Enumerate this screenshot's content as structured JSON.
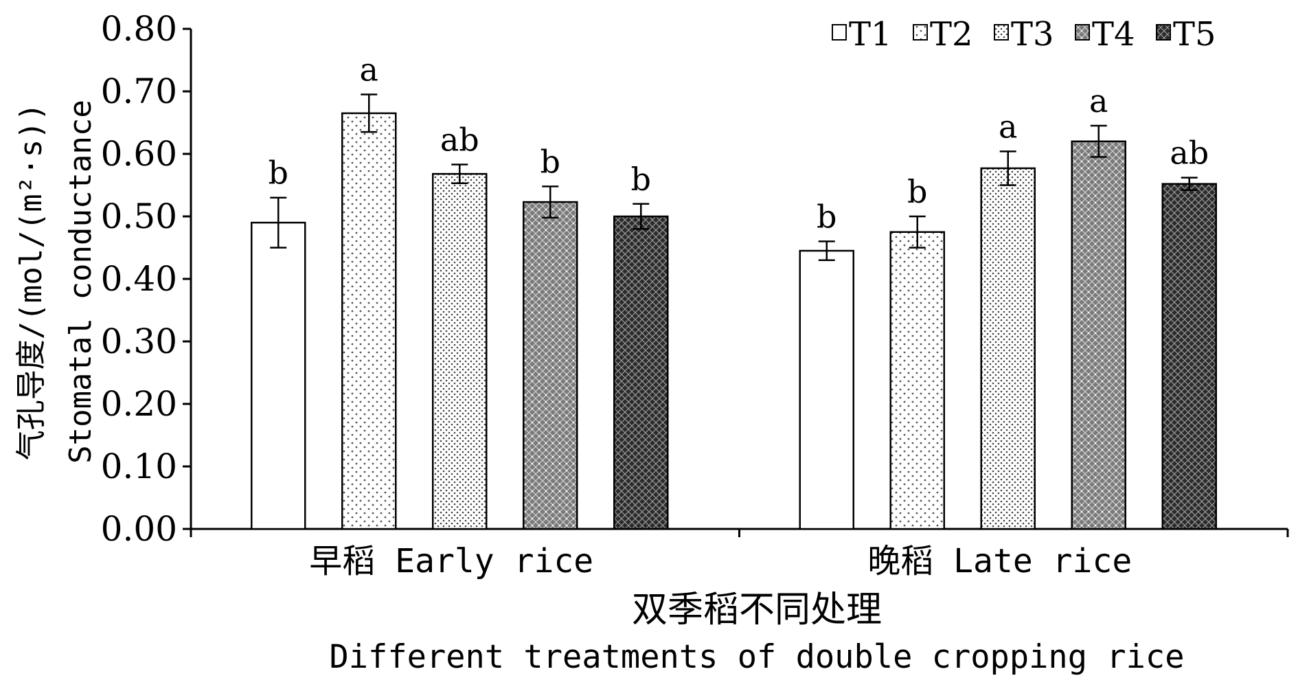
{
  "chart_data": {
    "type": "bar",
    "ylabel_cn": "气孔导度/(mol/(m²·s))",
    "ylabel_en": "Stomatal conductance",
    "xlabel_cn": "双季稻不同处理",
    "xlabel_en": "Different treatments of double cropping rice",
    "categories": [
      "早稻 Early rice",
      "晚稻 Late rice"
    ],
    "ylim": [
      0,
      0.8
    ],
    "yticks": [
      "0.00",
      "0.10",
      "0.20",
      "0.30",
      "0.40",
      "0.50",
      "0.60",
      "0.70",
      "0.80"
    ],
    "legend_position": "top-right",
    "grid": false,
    "series": [
      {
        "name": "T1",
        "values": [
          0.49,
          0.445
        ],
        "errors": [
          0.04,
          0.015
        ],
        "labels": [
          "b",
          "b"
        ],
        "pattern": "white",
        "color": "#ffffff"
      },
      {
        "name": "T2",
        "values": [
          0.665,
          0.475
        ],
        "errors": [
          0.03,
          0.025
        ],
        "labels": [
          "a",
          "b"
        ],
        "pattern": "sparse-dots",
        "color": "#f2f2f2"
      },
      {
        "name": "T3",
        "values": [
          0.568,
          0.577
        ],
        "errors": [
          0.015,
          0.027
        ],
        "labels": [
          "ab",
          "a"
        ],
        "pattern": "dense-dots",
        "color": "#e0e0e0"
      },
      {
        "name": "T4",
        "values": [
          0.523,
          0.62
        ],
        "errors": [
          0.025,
          0.025
        ],
        "labels": [
          "b",
          "a"
        ],
        "pattern": "gray-crosshatch",
        "color": "#8c8c8c"
      },
      {
        "name": "T5",
        "values": [
          0.5,
          0.552
        ],
        "errors": [
          0.02,
          0.01
        ],
        "labels": [
          "b",
          "ab"
        ],
        "pattern": "dark-crosshatch",
        "color": "#404040"
      }
    ]
  }
}
